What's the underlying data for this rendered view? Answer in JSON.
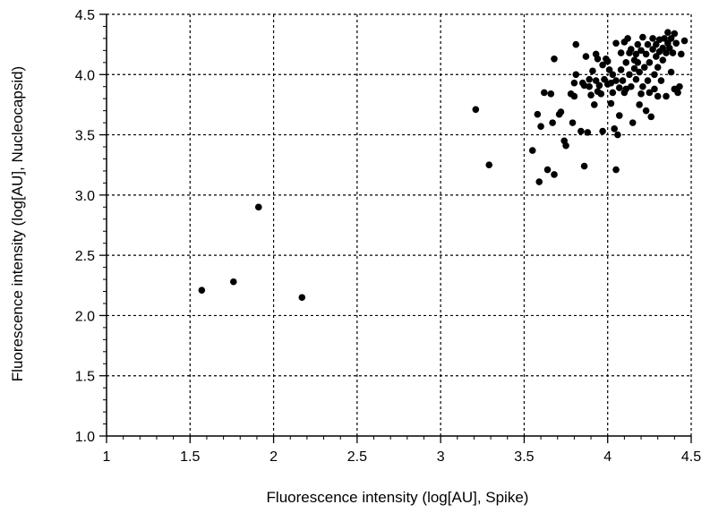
{
  "chart_data": {
    "type": "scatter",
    "title": "",
    "xlabel": "Fluorescence intensity (log[AU], Spike)",
    "ylabel": "Fluorescence intensity (log[AU], Nucleocapsid)",
    "xlim": [
      1,
      4.5
    ],
    "ylim": [
      1,
      4.5
    ],
    "x_ticks": [
      "1",
      "1.5",
      "2",
      "2.5",
      "3",
      "3.5",
      "4",
      "4.5"
    ],
    "y_ticks": [
      "1.0",
      "1.5",
      "2.0",
      "2.5",
      "3.0",
      "3.5",
      "4.0",
      "4.5"
    ],
    "grid": true,
    "series": [
      {
        "color": "#000000",
        "points": [
          [
            1.57,
            2.21
          ],
          [
            1.76,
            2.28
          ],
          [
            1.91,
            2.9
          ],
          [
            2.17,
            2.15
          ],
          [
            3.21,
            3.71
          ],
          [
            3.29,
            3.25
          ],
          [
            3.55,
            3.37
          ],
          [
            3.58,
            3.67
          ],
          [
            3.59,
            3.11
          ],
          [
            3.6,
            3.57
          ],
          [
            3.62,
            3.85
          ],
          [
            3.64,
            3.21
          ],
          [
            3.66,
            3.84
          ],
          [
            3.67,
            3.6
          ],
          [
            3.68,
            3.17
          ],
          [
            3.68,
            4.13
          ],
          [
            3.71,
            3.67
          ],
          [
            3.72,
            3.69
          ],
          [
            3.74,
            3.45
          ],
          [
            3.75,
            3.41
          ],
          [
            3.78,
            3.84
          ],
          [
            3.79,
            3.6
          ],
          [
            3.8,
            3.93
          ],
          [
            3.8,
            3.82
          ],
          [
            3.81,
            4.0
          ],
          [
            3.81,
            4.25
          ],
          [
            3.84,
            3.53
          ],
          [
            3.85,
            3.93
          ],
          [
            3.86,
            3.24
          ],
          [
            3.86,
            3.91
          ],
          [
            3.87,
            4.15
          ],
          [
            3.88,
            3.52
          ],
          [
            3.89,
            3.96
          ],
          [
            3.89,
            3.9
          ],
          [
            3.9,
            3.83
          ],
          [
            3.91,
            4.03
          ],
          [
            3.92,
            3.75
          ],
          [
            3.93,
            3.95
          ],
          [
            3.93,
            4.17
          ],
          [
            3.94,
            3.86
          ],
          [
            3.94,
            4.13
          ],
          [
            3.95,
            3.91
          ],
          [
            3.96,
            3.84
          ],
          [
            3.97,
            3.53
          ],
          [
            3.97,
            4.08
          ],
          [
            3.98,
            3.96
          ],
          [
            3.99,
            4.13
          ],
          [
            4.0,
            3.92
          ],
          [
            4.0,
            4.11
          ],
          [
            4.01,
            4.04
          ],
          [
            4.02,
            3.93
          ],
          [
            4.02,
            3.76
          ],
          [
            4.03,
            4.0
          ],
          [
            4.03,
            3.85
          ],
          [
            4.04,
            3.55
          ],
          [
            4.05,
            3.21
          ],
          [
            4.05,
            3.95
          ],
          [
            4.05,
            4.26
          ],
          [
            4.06,
            3.5
          ],
          [
            4.07,
            3.66
          ],
          [
            4.07,
            3.89
          ],
          [
            4.08,
            4.04
          ],
          [
            4.08,
            4.18
          ],
          [
            4.09,
            3.95
          ],
          [
            4.1,
            3.85
          ],
          [
            4.1,
            4.27
          ],
          [
            4.11,
            4.1
          ],
          [
            4.11,
            3.88
          ],
          [
            4.12,
            4.3
          ],
          [
            4.13,
            4.0
          ],
          [
            4.13,
            4.18
          ],
          [
            4.14,
            3.9
          ],
          [
            4.14,
            4.21
          ],
          [
            4.15,
            3.6
          ],
          [
            4.16,
            4.05
          ],
          [
            4.16,
            4.12
          ],
          [
            4.17,
            4.17
          ],
          [
            4.17,
            3.96
          ],
          [
            4.18,
            4.1
          ],
          [
            4.18,
            4.25
          ],
          [
            4.19,
            3.75
          ],
          [
            4.19,
            4.02
          ],
          [
            4.2,
            3.84
          ],
          [
            4.2,
            4.2
          ],
          [
            4.21,
            4.31
          ],
          [
            4.21,
            3.9
          ],
          [
            4.22,
            4.06
          ],
          [
            4.23,
            3.7
          ],
          [
            4.23,
            4.17
          ],
          [
            4.24,
            3.95
          ],
          [
            4.24,
            4.25
          ],
          [
            4.25,
            3.85
          ],
          [
            4.25,
            4.1
          ],
          [
            4.26,
            3.65
          ],
          [
            4.27,
            4.21
          ],
          [
            4.27,
            4.3
          ],
          [
            4.28,
            3.88
          ],
          [
            4.28,
            4.0
          ],
          [
            4.29,
            4.15
          ],
          [
            4.29,
            4.25
          ],
          [
            4.3,
            3.82
          ],
          [
            4.3,
            4.06
          ],
          [
            4.31,
            4.19
          ],
          [
            4.31,
            4.29
          ],
          [
            4.32,
            3.95
          ],
          [
            4.33,
            4.12
          ],
          [
            4.33,
            4.22
          ],
          [
            4.34,
            4.3
          ],
          [
            4.35,
            3.82
          ],
          [
            4.35,
            4.18
          ],
          [
            4.36,
            4.26
          ],
          [
            4.36,
            4.35
          ],
          [
            4.37,
            4.22
          ],
          [
            4.38,
            4.02
          ],
          [
            4.38,
            4.3
          ],
          [
            4.39,
            4.18
          ],
          [
            4.4,
            4.34
          ],
          [
            4.4,
            3.88
          ],
          [
            4.41,
            4.26
          ],
          [
            4.42,
            3.85
          ],
          [
            4.43,
            3.9
          ],
          [
            4.44,
            4.17
          ],
          [
            4.46,
            4.28
          ]
        ]
      }
    ]
  }
}
